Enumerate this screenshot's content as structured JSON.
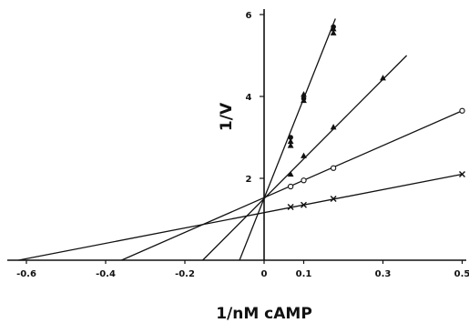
{
  "chart_data": {
    "type": "scatter",
    "title": "",
    "xlabel": "1/nM cAMP",
    "ylabel": "1/V",
    "xlim": [
      -0.65,
      0.5
    ],
    "ylim": [
      0,
      7
    ],
    "grid": false,
    "x_ticks": [
      "-0.6",
      "-0.4",
      "-0.2",
      "0",
      "0.1",
      "0.3",
      "0.5"
    ],
    "y_ticks": [
      "2",
      "4",
      "6"
    ],
    "x_tick_values": [
      -0.6,
      -0.4,
      -0.2,
      0,
      0.1,
      0.3,
      0.5
    ],
    "y_tick_values": [
      2,
      4,
      6
    ],
    "series": [
      {
        "marker": "filled-triangle",
        "line": [
          [
            -0.062,
            0
          ],
          [
            0.18,
            5.9
          ]
        ],
        "points": [
          [
            0.067,
            2.9
          ],
          [
            0.067,
            2.8
          ],
          [
            0.1,
            4.05
          ],
          [
            0.1,
            3.9
          ],
          [
            0.175,
            5.65
          ],
          [
            0.175,
            5.55
          ]
        ]
      },
      {
        "marker": "filled-circle",
        "points": [
          [
            0.067,
            3.0
          ],
          [
            0.1,
            3.95
          ],
          [
            0.175,
            5.7
          ]
        ]
      },
      {
        "marker": "filled-triangle",
        "line": [
          [
            -0.155,
            0
          ],
          [
            0.36,
            5.0
          ]
        ],
        "points": [
          [
            0.067,
            2.1
          ],
          [
            0.1,
            2.55
          ],
          [
            0.175,
            3.25
          ],
          [
            0.3,
            4.45
          ]
        ]
      },
      {
        "marker": "open-circle",
        "line": [
          [
            -0.36,
            0
          ],
          [
            0.5,
            3.65
          ]
        ],
        "points": [
          [
            0.067,
            1.8
          ],
          [
            0.1,
            1.95
          ],
          [
            0.175,
            2.25
          ],
          [
            0.5,
            3.65
          ]
        ]
      },
      {
        "marker": "cross",
        "line": [
          [
            -0.62,
            0
          ],
          [
            0.5,
            2.1
          ]
        ],
        "points": [
          [
            0.067,
            1.3
          ],
          [
            0.1,
            1.35
          ],
          [
            0.175,
            1.5
          ],
          [
            0.5,
            2.1
          ]
        ]
      }
    ]
  }
}
